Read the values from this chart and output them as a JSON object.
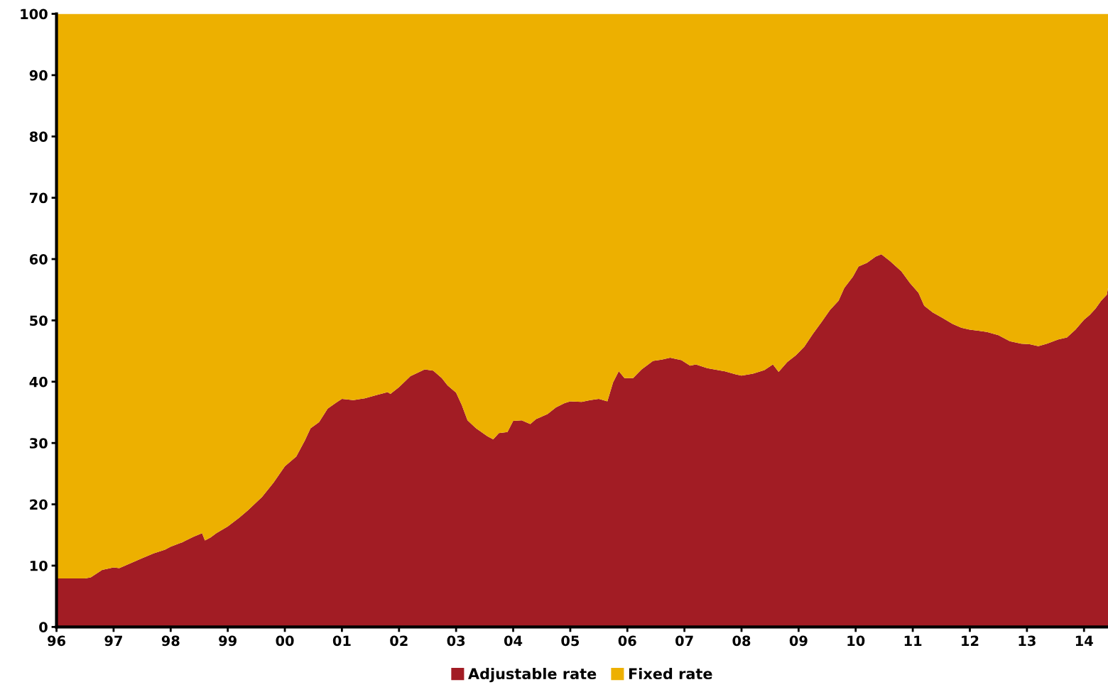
{
  "chart_data": {
    "type": "area",
    "stacked": true,
    "x": [
      1996.0,
      1996.5,
      1996.6,
      1996.8,
      1997.0,
      1997.1,
      1997.3,
      1997.5,
      1997.7,
      1997.9,
      1998.0,
      1998.2,
      1998.4,
      1998.55,
      1998.6,
      1998.7,
      1998.8,
      1999.0,
      1999.2,
      1999.35,
      1999.6,
      1999.8,
      2000.0,
      2000.2,
      2000.35,
      2000.45,
      2000.6,
      2000.75,
      2000.9,
      2001.0,
      2001.2,
      2001.4,
      2001.6,
      2001.8,
      2001.85,
      2002.0,
      2002.2,
      2002.45,
      2002.6,
      2002.75,
      2002.85,
      2003.0,
      2003.1,
      2003.2,
      2003.35,
      2003.55,
      2003.65,
      2003.75,
      2003.9,
      2004.0,
      2004.15,
      2004.3,
      2004.4,
      2004.6,
      2004.75,
      2004.9,
      2005.0,
      2005.2,
      2005.35,
      2005.5,
      2005.65,
      2005.75,
      2005.85,
      2005.95,
      2006.1,
      2006.25,
      2006.45,
      2006.6,
      2006.75,
      2006.95,
      2007.1,
      2007.2,
      2007.4,
      2007.7,
      2007.9,
      2008.0,
      2008.2,
      2008.4,
      2008.55,
      2008.65,
      2008.8,
      2008.95,
      2009.1,
      2009.25,
      2009.4,
      2009.55,
      2009.7,
      2009.8,
      2009.95,
      2010.05,
      2010.2,
      2010.35,
      2010.45,
      2010.6,
      2010.8,
      2010.95,
      2011.1,
      2011.2,
      2011.35,
      2011.5,
      2011.7,
      2011.85,
      2012.0,
      2012.15,
      2012.3,
      2012.5,
      2012.7,
      2012.9,
      2013.05,
      2013.2,
      2013.35,
      2013.55,
      2013.7,
      2013.85,
      2014.0,
      2014.1,
      2014.2,
      2014.3,
      2014.4,
      2014.42
    ],
    "series": [
      {
        "name": "Adjustable rate",
        "color": "#a21c24",
        "values": [
          7.9,
          7.9,
          8.1,
          9.3,
          9.7,
          9.6,
          10.4,
          11.2,
          12.0,
          12.6,
          13.1,
          13.8,
          14.7,
          15.3,
          14.1,
          14.6,
          15.3,
          16.4,
          17.8,
          19.0,
          21.2,
          23.5,
          26.2,
          27.8,
          30.4,
          32.4,
          33.4,
          35.6,
          36.6,
          37.2,
          37.0,
          37.3,
          37.8,
          38.3,
          38.0,
          39.1,
          40.9,
          42.0,
          41.8,
          40.6,
          39.4,
          38.2,
          36.2,
          33.7,
          32.4,
          31.1,
          30.6,
          31.6,
          31.8,
          33.6,
          33.7,
          33.1,
          33.9,
          34.7,
          35.8,
          36.5,
          36.8,
          36.7,
          37.0,
          37.2,
          36.8,
          39.9,
          41.7,
          40.6,
          40.6,
          42.0,
          43.4,
          43.6,
          43.9,
          43.5,
          42.6,
          42.8,
          42.2,
          41.7,
          41.2,
          41.0,
          41.3,
          41.9,
          42.8,
          41.6,
          43.2,
          44.3,
          45.7,
          47.8,
          49.7,
          51.7,
          53.2,
          55.3,
          57.1,
          58.8,
          59.4,
          60.4,
          60.8,
          59.7,
          58.0,
          56.1,
          54.5,
          52.4,
          51.3,
          50.5,
          49.4,
          48.8,
          48.5,
          48.3,
          48.1,
          47.6,
          46.6,
          46.2,
          46.1,
          45.8,
          46.2,
          46.9,
          47.2,
          48.5,
          50.1,
          50.9,
          51.9,
          53.2,
          54.2,
          55.3
        ]
      },
      {
        "name": "Fixed rate",
        "color": "#edb000",
        "values": [
          92.1,
          92.1,
          91.9,
          90.7,
          90.3,
          90.4,
          89.6,
          88.8,
          88.0,
          87.4,
          86.9,
          86.2,
          85.3,
          84.7,
          85.9,
          85.4,
          84.7,
          83.6,
          82.2,
          81.0,
          78.8,
          76.5,
          73.8,
          72.2,
          69.6,
          67.6,
          66.6,
          64.4,
          63.4,
          62.8,
          63.0,
          62.7,
          62.2,
          61.7,
          62.0,
          60.9,
          59.1,
          58.0,
          58.2,
          59.4,
          60.6,
          61.8,
          63.8,
          66.3,
          67.6,
          68.9,
          69.4,
          68.4,
          68.2,
          66.4,
          66.3,
          66.9,
          66.1,
          65.3,
          64.2,
          63.5,
          63.2,
          63.3,
          63.0,
          62.8,
          63.2,
          60.1,
          58.3,
          59.4,
          59.4,
          58.0,
          56.6,
          56.4,
          56.1,
          56.5,
          57.4,
          57.2,
          57.8,
          58.3,
          58.8,
          59.0,
          58.7,
          58.1,
          57.2,
          58.4,
          56.8,
          55.7,
          54.3,
          52.2,
          50.3,
          48.3,
          46.8,
          44.7,
          42.9,
          41.2,
          40.6,
          39.6,
          39.2,
          40.3,
          42.0,
          43.9,
          45.5,
          47.6,
          48.7,
          49.5,
          50.6,
          51.2,
          51.5,
          51.7,
          51.9,
          52.4,
          53.4,
          53.8,
          53.9,
          54.2,
          53.8,
          53.1,
          52.8,
          51.5,
          49.9,
          49.1,
          48.1,
          46.8,
          45.8,
          44.7
        ]
      }
    ],
    "xlim": [
      1996.0,
      2014.42
    ],
    "xticks": [
      {
        "value": 1996,
        "label": "96"
      },
      {
        "value": 1997,
        "label": "97"
      },
      {
        "value": 1998,
        "label": "98"
      },
      {
        "value": 1999,
        "label": "99"
      },
      {
        "value": 2000,
        "label": "00"
      },
      {
        "value": 2001,
        "label": "01"
      },
      {
        "value": 2002,
        "label": "02"
      },
      {
        "value": 2003,
        "label": "03"
      },
      {
        "value": 2004,
        "label": "04"
      },
      {
        "value": 2005,
        "label": "05"
      },
      {
        "value": 2006,
        "label": "06"
      },
      {
        "value": 2007,
        "label": "07"
      },
      {
        "value": 2008,
        "label": "08"
      },
      {
        "value": 2009,
        "label": "09"
      },
      {
        "value": 2010,
        "label": "10"
      },
      {
        "value": 2011,
        "label": "11"
      },
      {
        "value": 2012,
        "label": "12"
      },
      {
        "value": 2013,
        "label": "13"
      },
      {
        "value": 2014,
        "label": "14"
      }
    ],
    "ylim": [
      0,
      100
    ],
    "yticks": [
      0,
      10,
      20,
      30,
      40,
      50,
      60,
      70,
      80,
      90,
      100
    ],
    "grid": false,
    "legend": "bottom"
  }
}
